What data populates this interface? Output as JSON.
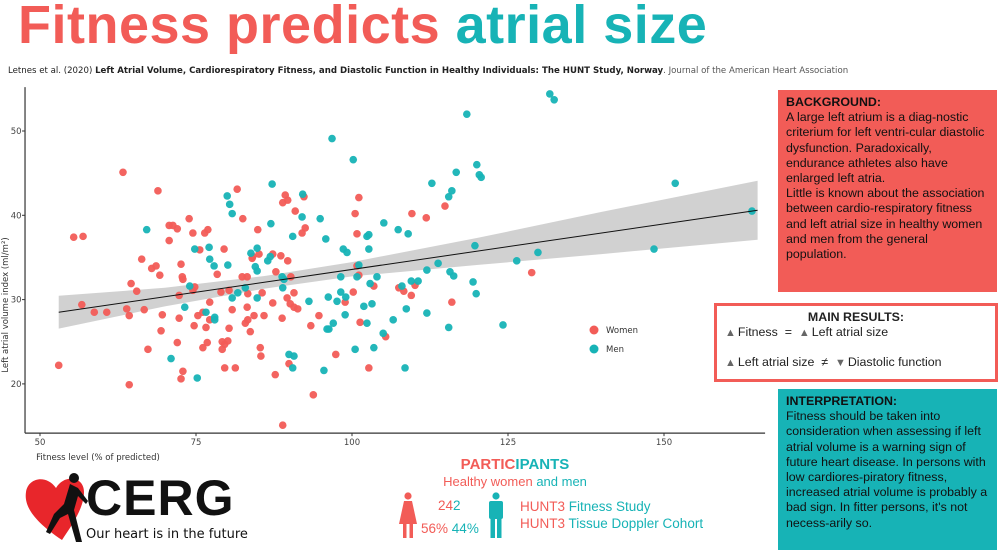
{
  "title": {
    "part1": "Fitness predicts",
    "part2": "atrial size"
  },
  "citation": {
    "authors": "Letnes et al. (2020)",
    "article": "Left Atrial Volume, Cardiorespiratory Fitness, and Diastolic Function in Healthy Individuals: The HUNT Study, Norway",
    "journal": ". Journal of the American Heart Association"
  },
  "colors": {
    "women": "#f25c57",
    "men": "#17b3b6",
    "ci_band": "#cfcfcf"
  },
  "chart_data": {
    "type": "scatter",
    "xlabel": "Fitness level (% of predicted)",
    "ylabel": "Left atrial volume index (ml/m²)",
    "xlim": [
      47.6,
      166.2
    ],
    "ylim": [
      14.4,
      55.2
    ],
    "xticks": [
      50,
      75,
      100,
      125,
      150
    ],
    "yticks": [
      20,
      30,
      40,
      50
    ],
    "grid": false,
    "legend": {
      "position": "right",
      "entries": [
        "Women",
        "Men"
      ]
    },
    "series": [
      {
        "name": "Women",
        "points": [
          [
            63.3,
            45.1
          ],
          [
            68.9,
            42.9
          ],
          [
            55.4,
            37.4
          ],
          [
            56.9,
            37.5
          ],
          [
            81.6,
            43.1
          ],
          [
            70.7,
            38.8
          ],
          [
            71.3,
            38.8
          ],
          [
            72.0,
            38.4
          ],
          [
            73.9,
            39.6
          ],
          [
            74.5,
            37.9
          ],
          [
            70.7,
            37.0
          ],
          [
            76.4,
            37.9
          ],
          [
            76.9,
            38.3
          ],
          [
            82.5,
            39.6
          ],
          [
            84.9,
            38.3
          ],
          [
            79.5,
            36.0
          ],
          [
            75.6,
            35.9
          ],
          [
            66.3,
            34.8
          ],
          [
            67.9,
            33.7
          ],
          [
            68.6,
            34.0
          ],
          [
            69.2,
            32.9
          ],
          [
            72.6,
            34.2
          ],
          [
            72.8,
            32.7
          ],
          [
            72.9,
            32.4
          ],
          [
            64.6,
            31.9
          ],
          [
            65.5,
            31.0
          ],
          [
            72.3,
            30.5
          ],
          [
            74.8,
            31.5
          ],
          [
            74.5,
            31.1
          ],
          [
            78.4,
            33.0
          ],
          [
            84.0,
            34.9
          ],
          [
            85.1,
            35.4
          ],
          [
            82.4,
            32.7
          ],
          [
            83.2,
            32.7
          ],
          [
            87.3,
            35.4
          ],
          [
            87.8,
            33.3
          ],
          [
            56.7,
            29.4
          ],
          [
            58.7,
            28.5
          ],
          [
            60.7,
            28.5
          ],
          [
            63.9,
            28.9
          ],
          [
            64.3,
            28.1
          ],
          [
            66.7,
            28.8
          ],
          [
            69.6,
            28.2
          ],
          [
            72.3,
            27.8
          ],
          [
            74.7,
            26.9
          ],
          [
            75.3,
            28.1
          ],
          [
            76.1,
            28.5
          ],
          [
            76.6,
            26.7
          ],
          [
            77.2,
            29.7
          ],
          [
            77.2,
            27.6
          ],
          [
            79.0,
            30.9
          ],
          [
            80.3,
            31.1
          ],
          [
            80.8,
            28.8
          ],
          [
            83.3,
            30.7
          ],
          [
            83.2,
            29.1
          ],
          [
            85.6,
            30.8
          ],
          [
            87.3,
            29.6
          ],
          [
            84.3,
            28.1
          ],
          [
            82.9,
            27.2
          ],
          [
            83.3,
            27.6
          ],
          [
            85.9,
            28.1
          ],
          [
            83.7,
            26.2
          ],
          [
            80.3,
            26.6
          ],
          [
            69.4,
            26.3
          ],
          [
            72.0,
            24.9
          ],
          [
            76.8,
            24.9
          ],
          [
            76.1,
            24.3
          ],
          [
            79.2,
            25.0
          ],
          [
            79.6,
            24.7
          ],
          [
            80.1,
            25.1
          ],
          [
            79.2,
            24.1
          ],
          [
            67.3,
            24.1
          ],
          [
            85.3,
            24.3
          ],
          [
            85.4,
            23.3
          ],
          [
            53.0,
            22.2
          ],
          [
            72.9,
            21.5
          ],
          [
            72.6,
            20.6
          ],
          [
            79.6,
            21.9
          ],
          [
            81.3,
            21.9
          ],
          [
            64.3,
            19.9
          ],
          [
            87.7,
            21.1
          ],
          [
            89.3,
            42.4
          ],
          [
            89.7,
            41.8
          ],
          [
            88.9,
            41.5
          ],
          [
            92.3,
            42.2
          ],
          [
            90.9,
            40.5
          ],
          [
            92.5,
            38.5
          ],
          [
            92.0,
            37.9
          ],
          [
            101.1,
            42.1
          ],
          [
            100.5,
            40.2
          ],
          [
            100.8,
            37.8
          ],
          [
            109.6,
            40.2
          ],
          [
            111.9,
            39.7
          ],
          [
            114.9,
            41.1
          ],
          [
            88.6,
            35.2
          ],
          [
            89.7,
            34.6
          ],
          [
            84.1,
            35.1
          ],
          [
            90.2,
            32.7
          ],
          [
            90.7,
            30.8
          ],
          [
            89.6,
            30.2
          ],
          [
            90.1,
            29.5
          ],
          [
            90.7,
            29.1
          ],
          [
            91.3,
            28.9
          ],
          [
            88.8,
            27.8
          ],
          [
            94.7,
            28.1
          ],
          [
            93.4,
            26.9
          ],
          [
            100.8,
            34.0
          ],
          [
            101.1,
            32.9
          ],
          [
            103.5,
            31.6
          ],
          [
            100.2,
            30.9
          ],
          [
            98.9,
            29.7
          ],
          [
            107.5,
            31.4
          ],
          [
            108.3,
            31.0
          ],
          [
            110.1,
            31.7
          ],
          [
            109.5,
            30.5
          ],
          [
            116.0,
            29.7
          ],
          [
            101.3,
            27.3
          ],
          [
            105.4,
            25.6
          ],
          [
            89.9,
            22.4
          ],
          [
            97.4,
            23.5
          ],
          [
            102.7,
            21.9
          ],
          [
            93.8,
            18.7
          ],
          [
            88.9,
            15.1
          ],
          [
            128.8,
            33.2
          ]
        ]
      },
      {
        "name": "Men",
        "points": [
          [
            87.2,
            43.7
          ],
          [
            80.0,
            42.3
          ],
          [
            80.4,
            41.3
          ],
          [
            80.8,
            40.2
          ],
          [
            87.0,
            39.0
          ],
          [
            67.1,
            38.3
          ],
          [
            74.8,
            36.0
          ],
          [
            77.1,
            36.2
          ],
          [
            77.2,
            34.8
          ],
          [
            77.9,
            34.0
          ],
          [
            80.1,
            34.1
          ],
          [
            83.8,
            35.5
          ],
          [
            84.8,
            36.1
          ],
          [
            86.5,
            34.6
          ],
          [
            86.9,
            35.1
          ],
          [
            84.5,
            33.9
          ],
          [
            84.8,
            33.4
          ],
          [
            74.0,
            31.6
          ],
          [
            73.2,
            29.1
          ],
          [
            80.8,
            30.2
          ],
          [
            81.7,
            30.8
          ],
          [
            82.9,
            31.4
          ],
          [
            84.8,
            30.2
          ],
          [
            76.6,
            28.5
          ],
          [
            78.0,
            27.9
          ],
          [
            78.0,
            27.6
          ],
          [
            71.0,
            23.0
          ],
          [
            75.2,
            20.7
          ],
          [
            96.8,
            49.1
          ],
          [
            100.2,
            46.6
          ],
          [
            92.1,
            42.5
          ],
          [
            92.0,
            39.8
          ],
          [
            94.9,
            39.6
          ],
          [
            90.5,
            37.5
          ],
          [
            95.8,
            37.2
          ],
          [
            102.4,
            37.5
          ],
          [
            102.7,
            37.7
          ],
          [
            102.7,
            36.0
          ],
          [
            98.6,
            36.0
          ],
          [
            99.2,
            35.6
          ],
          [
            105.1,
            39.1
          ],
          [
            107.4,
            38.3
          ],
          [
            109.0,
            37.8
          ],
          [
            112.8,
            43.8
          ],
          [
            116.7,
            45.1
          ],
          [
            120.0,
            46.0
          ],
          [
            120.4,
            44.8
          ],
          [
            120.7,
            44.5
          ],
          [
            116.0,
            42.9
          ],
          [
            115.5,
            42.2
          ],
          [
            88.8,
            32.7
          ],
          [
            89.1,
            32.4
          ],
          [
            88.9,
            31.4
          ],
          [
            98.2,
            32.7
          ],
          [
            100.8,
            32.7
          ],
          [
            101.1,
            34.1
          ],
          [
            104.0,
            32.7
          ],
          [
            102.9,
            31.9
          ],
          [
            98.2,
            30.9
          ],
          [
            99.0,
            30.3
          ],
          [
            97.6,
            29.8
          ],
          [
            96.2,
            30.3
          ],
          [
            93.1,
            29.8
          ],
          [
            101.9,
            29.2
          ],
          [
            103.2,
            29.5
          ],
          [
            98.9,
            28.2
          ],
          [
            97.0,
            27.2
          ],
          [
            96.3,
            26.5
          ],
          [
            96.0,
            26.5
          ],
          [
            102.4,
            27.2
          ],
          [
            105.0,
            26.0
          ],
          [
            106.6,
            27.6
          ],
          [
            108.7,
            28.9
          ],
          [
            108.0,
            31.6
          ],
          [
            109.5,
            32.2
          ],
          [
            110.6,
            32.2
          ],
          [
            112.0,
            33.5
          ],
          [
            113.8,
            34.3
          ],
          [
            115.7,
            33.3
          ],
          [
            116.3,
            32.8
          ],
          [
            112.0,
            28.4
          ],
          [
            115.5,
            26.7
          ],
          [
            119.7,
            36.4
          ],
          [
            119.4,
            32.1
          ],
          [
            119.9,
            30.7
          ],
          [
            89.9,
            23.5
          ],
          [
            90.7,
            23.3
          ],
          [
            90.5,
            21.9
          ],
          [
            100.5,
            24.1
          ],
          [
            103.5,
            24.3
          ],
          [
            95.5,
            21.6
          ],
          [
            108.5,
            21.9
          ],
          [
            131.7,
            54.4
          ],
          [
            132.4,
            53.7
          ],
          [
            151.8,
            43.8
          ],
          [
            164.1,
            40.5
          ],
          [
            148.4,
            36.0
          ],
          [
            129.8,
            35.6
          ],
          [
            126.4,
            34.6
          ],
          [
            124.2,
            27.0
          ],
          [
            118.4,
            52.0
          ]
        ]
      }
    ],
    "regression": {
      "line": [
        [
          53,
          28.5
        ],
        [
          165,
          40.6
        ]
      ],
      "ci": {
        "x": [
          53,
          70,
          86,
          100,
          120,
          140,
          165
        ],
        "upper": [
          30.45,
          31.4,
          32.8,
          34.45,
          37.3,
          40.4,
          44.1
        ],
        "lower": [
          26.55,
          29.2,
          31.3,
          32.75,
          34.1,
          35.4,
          37.1
        ]
      }
    }
  },
  "background": {
    "heading": "BACKGROUND:",
    "text1": "A large left atrium is a diag-nostic criterium for left ventri-cular diastolic dysfunction. Paradoxically, endurance athletes also have enlarged left atria.",
    "text2": "Little is known about the association between cardio-respiratory fitness and left atrial size in healthy women and men from the general population."
  },
  "main_results": {
    "heading": "MAIN RESULTS:",
    "row1": {
      "left": "Fitness",
      "op": "=",
      "right": "Left atrial size"
    },
    "row2": {
      "left": "Left atrial size",
      "op": "≠",
      "right": "Diastolic function"
    }
  },
  "interpretation": {
    "heading": "INTERPRETATION:",
    "text": "Fitness should be taken into consideration when assessing if left atrial volume is a warning sign of future heart disease. In persons with low cardiores-piratory fitness, increased atrial volume is probably a bad sign. In fitter persons, it's not necess-arily so."
  },
  "participants": {
    "title_a": "PARTIC",
    "title_b": "IPANTS",
    "sub_a": "Healthy women ",
    "sub_b": "and men",
    "count_a": "24",
    "count_b": "2",
    "women_pct": "56%",
    "men_pct": "44%",
    "study1_a": "HUNT3 ",
    "study1_b": "Fitness Study",
    "study2_a": "HUNT3 ",
    "study2_b": "Tissue Doppler Cohort"
  },
  "logo": {
    "name": "CERG",
    "tagline": "Our heart is in the future"
  }
}
